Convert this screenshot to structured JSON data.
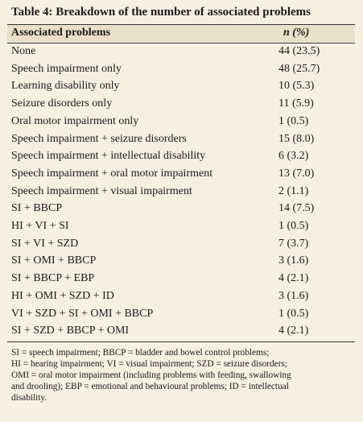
{
  "table": {
    "title": "Table 4: Breakdown of the number of associated problems",
    "columns": [
      "Associated problems",
      "n (%)"
    ],
    "rows": [
      [
        "None",
        "44 (23.5)"
      ],
      [
        "Speech impairment only",
        "48 (25.7)"
      ],
      [
        "Learning disability only",
        "10 (5.3)"
      ],
      [
        "Seizure disorders only",
        "11 (5.9)"
      ],
      [
        "Oral motor impairment only",
        "1 (0.5)"
      ],
      [
        "Speech impairment + seizure disorders",
        "15 (8.0)"
      ],
      [
        "Speech impairment + intellectual disability",
        "6 (3.2)"
      ],
      [
        "Speech impairment + oral motor impairment",
        "13 (7.0)"
      ],
      [
        "Speech impairment + visual impairment",
        "2 (1.1)"
      ],
      [
        "SI + BBCP",
        "14 (7.5)"
      ],
      [
        "HI + VI + SI",
        "1 (0.5)"
      ],
      [
        "SI + VI + SZD",
        "7 (3.7)"
      ],
      [
        "SI + OMI + BBCP",
        "3 (1.6)"
      ],
      [
        "SI + BBCP + EBP",
        "4 (2.1)"
      ],
      [
        "HI + OMI + SZD + ID",
        "3 (1.6)"
      ],
      [
        "VI + SZD + SI + OMI + BBCP",
        "1 (0.5)"
      ],
      [
        "SI + SZD + BBCP + OMI",
        "4 (2.1)"
      ]
    ],
    "footnote": [
      "SI = speech impairment; BBCP = bladder and bowel control problems;",
      "HI = hearing impairment; VI = visual impairment; SZD = seizure disorders;",
      "OMI = oral motor impairment (including problems with feeding, swallowing",
      "and drooling); EBP = emotional and behavioural problems; ID = intellectual",
      "disability."
    ]
  }
}
